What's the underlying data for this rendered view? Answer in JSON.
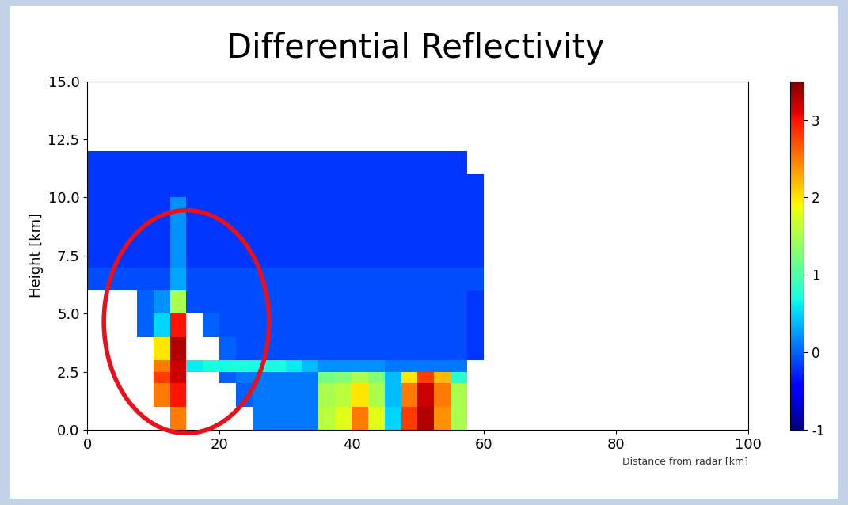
{
  "chart_data": {
    "type": "heatmap",
    "title": "Differential Reflectivity",
    "x_label": "Distance from radar [km]",
    "y_label": "Height [km]",
    "xlim": [
      0,
      100
    ],
    "xticks": [
      0,
      20,
      40,
      60,
      80,
      100
    ],
    "ylim": [
      0.0,
      15.0
    ],
    "yticks": [
      0.0,
      2.5,
      5.0,
      7.5,
      10.0,
      12.5,
      15.0
    ],
    "x_edges": [
      0,
      2.5,
      5,
      7.5,
      10,
      12.5,
      15,
      17.5,
      20,
      22.5,
      25,
      27.5,
      30,
      32.5,
      35,
      37.5,
      40,
      42.5,
      45,
      47.5,
      50,
      52.5,
      55,
      57.5,
      60
    ],
    "y_edges": [
      0,
      1,
      2,
      2.5,
      3,
      4,
      5,
      6,
      7,
      8,
      9,
      10,
      11,
      12
    ],
    "cells": [
      [
        null,
        null,
        null,
        null,
        null,
        2.5,
        null,
        null,
        null,
        null,
        0.1,
        0.1,
        0.1,
        0.1,
        1.6,
        1.8,
        2.5,
        1.8,
        0.5,
        2.8,
        3.3,
        2.4,
        1.5,
        null
      ],
      [
        null,
        null,
        null,
        null,
        2.5,
        3.0,
        null,
        null,
        null,
        0.0,
        0.1,
        0.1,
        0.1,
        0.1,
        1.5,
        1.6,
        2.0,
        1.5,
        0.4,
        2.5,
        3.2,
        2.5,
        1.5,
        null
      ],
      [
        null,
        null,
        null,
        null,
        2.8,
        3.2,
        null,
        null,
        0.0,
        0.1,
        0.1,
        0.1,
        0.1,
        0.1,
        1.2,
        1.3,
        1.5,
        1.3,
        0.4,
        2.0,
        2.8,
        2.2,
        0.8,
        null
      ],
      [
        null,
        null,
        null,
        null,
        2.5,
        3.2,
        0.6,
        0.7,
        0.7,
        0.7,
        0.7,
        0.7,
        0.6,
        0.4,
        0.2,
        0.2,
        0.2,
        0.2,
        0.1,
        0.1,
        0.1,
        0.1,
        0.1,
        null
      ],
      [
        null,
        null,
        null,
        null,
        2.0,
        3.3,
        null,
        null,
        0.0,
        -0.1,
        -0.1,
        -0.1,
        -0.1,
        -0.1,
        -0.1,
        -0.1,
        -0.1,
        -0.1,
        -0.1,
        -0.1,
        -0.1,
        -0.1,
        -0.1,
        -0.2
      ],
      [
        null,
        null,
        null,
        0.0,
        0.5,
        3.0,
        null,
        0.0,
        -0.1,
        -0.1,
        -0.1,
        -0.1,
        -0.1,
        -0.1,
        -0.1,
        -0.1,
        -0.1,
        -0.1,
        -0.1,
        -0.1,
        -0.1,
        -0.1,
        -0.1,
        -0.2
      ],
      [
        null,
        null,
        null,
        0.0,
        0.2,
        1.5,
        -0.1,
        -0.1,
        -0.1,
        -0.1,
        -0.1,
        -0.1,
        -0.1,
        -0.1,
        -0.1,
        -0.1,
        -0.1,
        -0.1,
        -0.1,
        -0.1,
        -0.1,
        -0.1,
        -0.1,
        -0.2
      ],
      [
        -0.1,
        -0.1,
        -0.1,
        -0.1,
        -0.1,
        0.3,
        -0.1,
        -0.1,
        -0.1,
        -0.1,
        -0.1,
        -0.1,
        -0.1,
        -0.1,
        -0.1,
        -0.1,
        -0.1,
        -0.1,
        -0.1,
        -0.1,
        -0.1,
        -0.1,
        -0.1,
        -0.1
      ],
      [
        -0.2,
        -0.2,
        -0.2,
        -0.2,
        -0.2,
        0.2,
        -0.2,
        -0.2,
        -0.2,
        -0.2,
        -0.2,
        -0.2,
        -0.2,
        -0.2,
        -0.2,
        -0.2,
        -0.2,
        -0.2,
        -0.2,
        -0.2,
        -0.2,
        -0.2,
        -0.2,
        -0.2
      ],
      [
        -0.2,
        -0.2,
        -0.2,
        -0.2,
        -0.2,
        0.2,
        -0.2,
        -0.2,
        -0.2,
        -0.2,
        -0.2,
        -0.2,
        -0.2,
        -0.2,
        -0.2,
        -0.2,
        -0.2,
        -0.2,
        -0.2,
        -0.2,
        -0.2,
        -0.2,
        -0.2,
        -0.2
      ],
      [
        -0.2,
        -0.2,
        -0.2,
        -0.2,
        -0.2,
        0.2,
        -0.2,
        -0.2,
        -0.2,
        -0.2,
        -0.2,
        -0.2,
        -0.2,
        -0.2,
        -0.2,
        -0.2,
        -0.2,
        -0.2,
        -0.2,
        -0.2,
        -0.2,
        -0.2,
        -0.2,
        -0.2
      ],
      [
        -0.2,
        -0.2,
        -0.2,
        -0.2,
        -0.2,
        -0.2,
        -0.2,
        -0.2,
        -0.2,
        -0.2,
        -0.2,
        -0.2,
        -0.2,
        -0.2,
        -0.2,
        -0.2,
        -0.2,
        -0.2,
        -0.2,
        -0.2,
        -0.2,
        -0.2,
        -0.2,
        -0.2
      ],
      [
        -0.2,
        -0.2,
        -0.2,
        -0.2,
        -0.2,
        -0.2,
        -0.2,
        -0.2,
        -0.2,
        -0.2,
        -0.2,
        -0.2,
        -0.2,
        -0.2,
        -0.2,
        -0.2,
        -0.2,
        -0.2,
        -0.2,
        -0.2,
        -0.2,
        -0.2,
        -0.2,
        null
      ]
    ],
    "colorbar_range": [
      -1,
      3.5
    ],
    "colorbar_ticks": [
      -1,
      0,
      1,
      2,
      3
    ]
  }
}
